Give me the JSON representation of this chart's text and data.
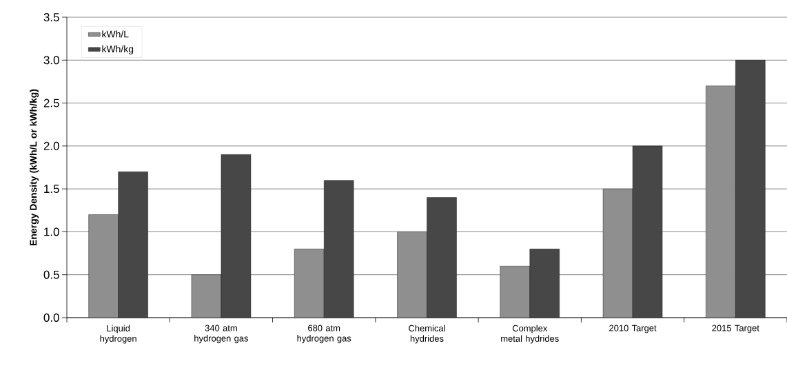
{
  "chart_data": {
    "type": "bar",
    "ylabel": "Energy Density (kWh/L or kWh/kg)",
    "categories": [
      "Liquid hydrogen",
      "340 atm hydrogen gas",
      "680 atm hydrogen gas",
      "Chemical hydrides",
      "Complex metal hydrides",
      "2010 Target",
      "2015 Target"
    ],
    "series": [
      {
        "name": "kWh/L",
        "color": "#8f8f8f",
        "values": [
          1.2,
          0.5,
          0.8,
          1.0,
          0.6,
          1.5,
          2.7
        ]
      },
      {
        "name": "kWh/kg",
        "color": "#474747",
        "values": [
          1.7,
          1.9,
          1.6,
          1.4,
          0.8,
          2.0,
          3.0
        ]
      }
    ],
    "ylim": [
      0,
      3.5
    ],
    "yticks": [
      {
        "value": 0,
        "label": "0.0"
      },
      {
        "value": 0.5,
        "label": "0.5"
      },
      {
        "value": 1,
        "label": "1.0"
      },
      {
        "value": 1.5,
        "label": "1.5"
      },
      {
        "value": 2,
        "label": "2.0"
      },
      {
        "value": 2.5,
        "label": "2.5"
      },
      {
        "value": 3,
        "label": "3.0"
      },
      {
        "value": 3.5,
        "label": "3.5"
      }
    ],
    "grid": "y",
    "legend": "top left"
  }
}
